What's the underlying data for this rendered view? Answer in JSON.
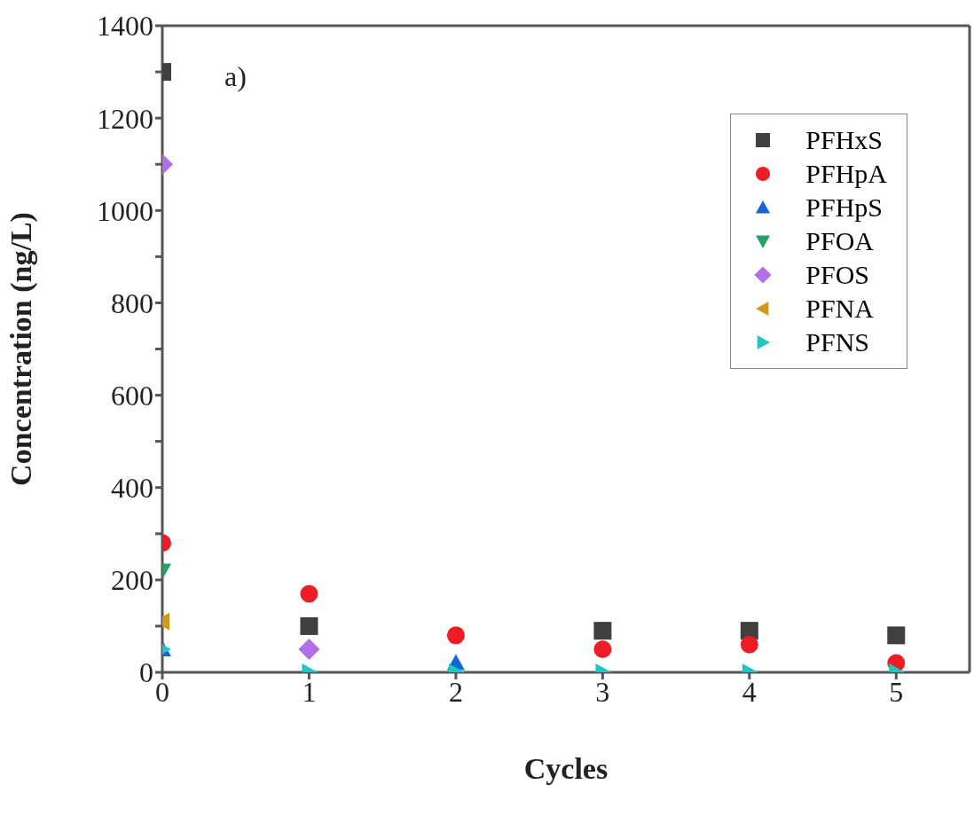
{
  "chart_data": {
    "type": "scatter",
    "xlabel": "Cycles",
    "ylabel": "Concentration (ng/L)",
    "annotations": [
      "a)"
    ],
    "x": [
      0,
      1,
      2,
      3,
      4,
      5
    ],
    "xlim": [
      0,
      5.5
    ],
    "xticks": [
      0,
      1,
      2,
      3,
      4,
      5
    ],
    "ylim": [
      0,
      1400
    ],
    "yticks": [
      0,
      {
        "value": 100,
        "label": null
      },
      200,
      {
        "value": 300,
        "label": null
      },
      400,
      {
        "value": 500,
        "label": null
      },
      600,
      {
        "value": 700,
        "label": null
      },
      800,
      {
        "value": 900,
        "label": null
      },
      1000,
      {
        "value": 1100,
        "label": null
      },
      1200,
      {
        "value": 1300,
        "label": null
      },
      1400
    ],
    "grid": false,
    "legend": "top right",
    "series": [
      {
        "name": "PFHxS",
        "color": "#404040",
        "marker": "square",
        "values": [
          1300,
          100,
          null,
          90,
          90,
          80
        ]
      },
      {
        "name": "PFHpA",
        "color": "#ee1c25",
        "marker": "circle",
        "values": [
          280,
          170,
          80,
          50,
          60,
          20
        ]
      },
      {
        "name": "PFHpS",
        "color": "#1565d8",
        "marker": "triangle",
        "values": [
          50,
          null,
          20,
          null,
          null,
          null
        ]
      },
      {
        "name": "PFOA",
        "color": "#1ea466",
        "marker": "triangle-down",
        "values": [
          220,
          null,
          null,
          null,
          null,
          null
        ]
      },
      {
        "name": "PFOS",
        "color": "#b070e8",
        "marker": "diamond",
        "values": [
          1100,
          50,
          null,
          null,
          null,
          null
        ]
      },
      {
        "name": "PFNA",
        "color": "#d4981c",
        "marker": "triangle-left",
        "values": [
          110,
          null,
          null,
          null,
          null,
          null
        ]
      },
      {
        "name": "PFNS",
        "color": "#22c4c4",
        "marker": "triangle-right",
        "values": [
          50,
          0,
          0,
          0,
          0,
          0
        ]
      }
    ]
  }
}
